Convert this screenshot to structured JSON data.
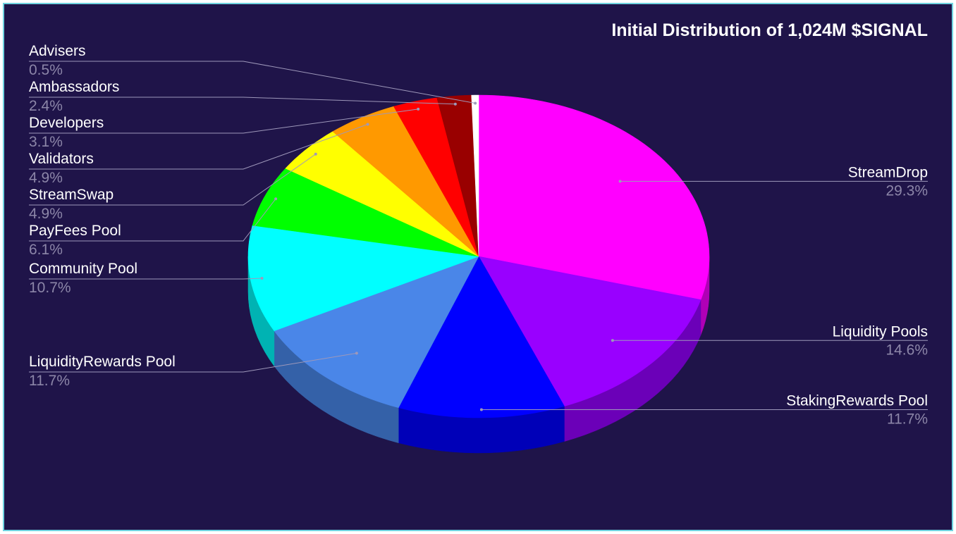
{
  "chart_data": {
    "type": "pie",
    "style": "3d",
    "title": "Initial Distribution of 1,024M $SIGNAL",
    "colors": {
      "background": "#1f1449",
      "frame_border": "#6fd3e0",
      "title": "#ffffff",
      "label_name": "#ffffff",
      "label_value": "#8c86a8",
      "leader_line": "#9e98ba"
    },
    "slices": [
      {
        "name": "StreamDrop",
        "value": 29.3,
        "label": "29.3%",
        "color": "#ff00ff",
        "side_color": "#b000b6"
      },
      {
        "name": "Liquidity Pools",
        "value": 14.6,
        "label": "14.6%",
        "color": "#9900ff",
        "side_color": "#6b00b8"
      },
      {
        "name": "StakingRewards Pool",
        "value": 11.7,
        "label": "11.7%",
        "color": "#0000ff",
        "side_color": "#0000b8"
      },
      {
        "name": "LiquidityRewards Pool",
        "value": 11.7,
        "label": "11.7%",
        "color": "#4a86e8",
        "side_color": "#3461a8"
      },
      {
        "name": "Community Pool",
        "value": 10.7,
        "label": "10.7%",
        "color": "#00ffff",
        "side_color": "#00b3b3"
      },
      {
        "name": "PayFees Pool",
        "value": 6.1,
        "label": "6.1%",
        "color": "#00ff00",
        "side_color": "#00b300"
      },
      {
        "name": "StreamSwap",
        "value": 4.9,
        "label": "4.9%",
        "color": "#ffff00",
        "side_color": "#b3b300"
      },
      {
        "name": "Validators",
        "value": 4.9,
        "label": "4.9%",
        "color": "#ff9900",
        "side_color": "#b36b00"
      },
      {
        "name": "Developers",
        "value": 3.1,
        "label": "3.1%",
        "color": "#ff0000",
        "side_color": "#b30000"
      },
      {
        "name": "Ambassadors",
        "value": 2.4,
        "label": "2.4%",
        "color": "#990000",
        "side_color": "#6b0000"
      },
      {
        "name": "Advisers",
        "value": 0.5,
        "label": "0.5%",
        "color": "#ffffff",
        "side_color": "#bbbbbb"
      }
    ]
  }
}
